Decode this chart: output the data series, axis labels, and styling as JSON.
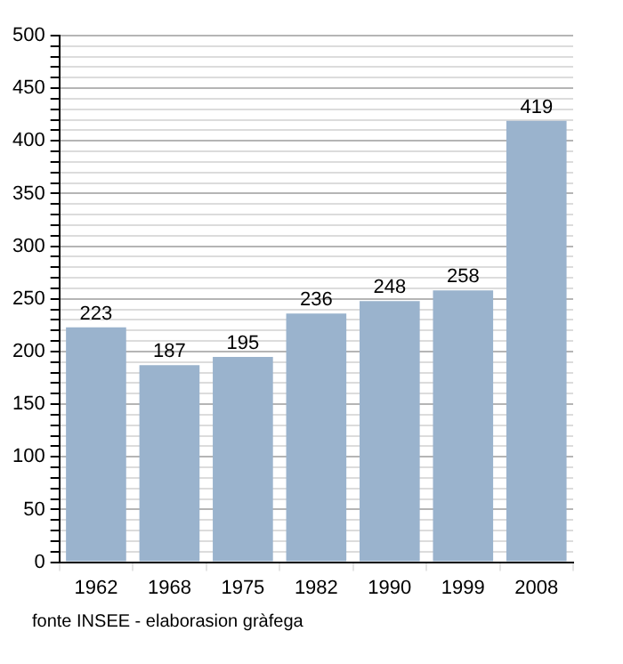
{
  "chart_data": {
    "type": "bar",
    "categories": [
      "1962",
      "1968",
      "1975",
      "1982",
      "1990",
      "1999",
      "2008"
    ],
    "values": [
      223,
      187,
      195,
      236,
      248,
      258,
      419
    ],
    "color": "#9ab3cd",
    "ylim": [
      0,
      500
    ],
    "yticks": [
      0,
      {
        "value": 10,
        "label": null
      },
      {
        "value": 20,
        "label": null
      },
      {
        "value": 30,
        "label": null
      },
      {
        "value": 40,
        "label": null
      },
      50,
      {
        "value": 60,
        "label": null
      },
      {
        "value": 70,
        "label": null
      },
      {
        "value": 80,
        "label": null
      },
      {
        "value": 90,
        "label": null
      },
      100,
      {
        "value": 110,
        "label": null
      },
      {
        "value": 120,
        "label": null
      },
      {
        "value": 130,
        "label": null
      },
      {
        "value": 140,
        "label": null
      },
      150,
      {
        "value": 160,
        "label": null
      },
      {
        "value": 170,
        "label": null
      },
      {
        "value": 180,
        "label": null
      },
      {
        "value": 190,
        "label": null
      },
      200,
      {
        "value": 210,
        "label": null
      },
      {
        "value": 220,
        "label": null
      },
      {
        "value": 230,
        "label": null
      },
      {
        "value": 240,
        "label": null
      },
      250,
      {
        "value": 260,
        "label": null
      },
      {
        "value": 270,
        "label": null
      },
      {
        "value": 280,
        "label": null
      },
      {
        "value": 290,
        "label": null
      },
      300,
      {
        "value": 310,
        "label": null
      },
      {
        "value": 320,
        "label": null
      },
      {
        "value": 330,
        "label": null
      },
      {
        "value": 340,
        "label": null
      },
      350,
      {
        "value": 360,
        "label": null
      },
      {
        "value": 370,
        "label": null
      },
      {
        "value": 380,
        "label": null
      },
      {
        "value": 390,
        "label": null
      },
      400,
      {
        "value": 410,
        "label": null
      },
      {
        "value": 420,
        "label": null
      },
      {
        "value": 430,
        "label": null
      },
      {
        "value": 440,
        "label": null
      },
      450,
      {
        "value": 460,
        "label": null
      },
      {
        "value": 470,
        "label": null
      },
      {
        "value": 480,
        "label": null
      },
      {
        "value": 490,
        "label": null
      },
      500
    ],
    "grid": true,
    "data_labels": true,
    "annotations": [
      "fonte INSEE - elaborasion gràfega"
    ]
  }
}
